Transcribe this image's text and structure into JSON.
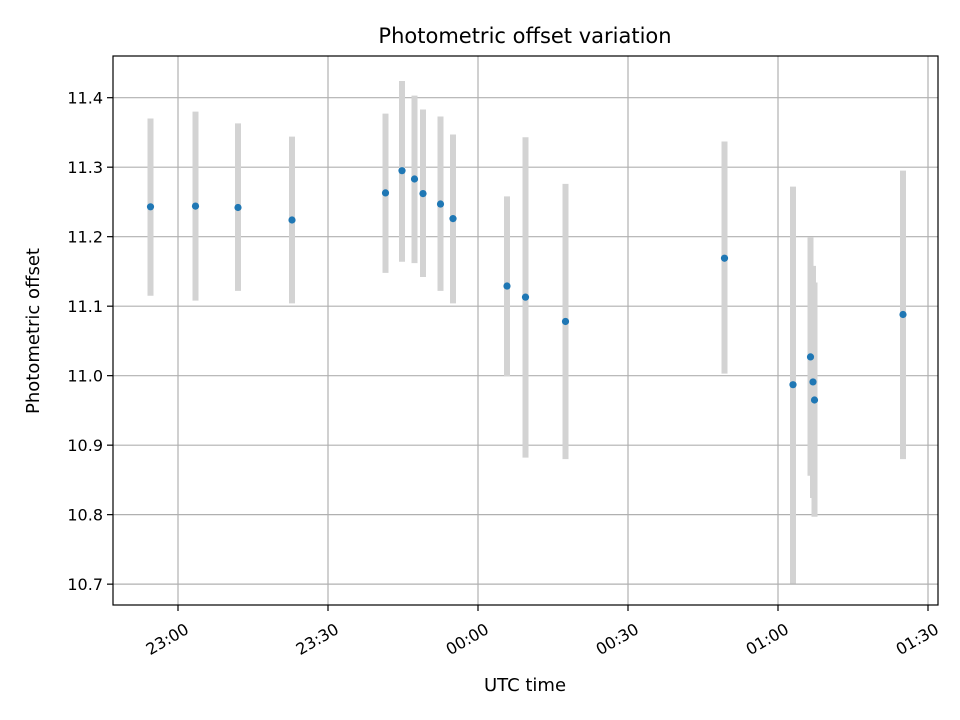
{
  "chart_data": {
    "type": "scatter",
    "title": "Photometric offset variation",
    "xlabel": "UTC time",
    "ylabel": "Photometric offset",
    "x_axis_kind": "time",
    "xlim": [
      "22:47",
      "01:32"
    ],
    "ylim": [
      10.67,
      11.46
    ],
    "x_ticks": [
      "23:00",
      "23:30",
      "00:00",
      "00:30",
      "01:00",
      "01:30"
    ],
    "y_ticks": [
      "10.7",
      "10.8",
      "10.9",
      "11.0",
      "11.1",
      "11.2",
      "11.3",
      "11.4"
    ],
    "grid": true,
    "marker_color": "#1f77b4",
    "errorbar_color": "#d3d3d3",
    "series": [
      {
        "points": [
          {
            "x": "22:54.5",
            "y": 11.243,
            "ylow": 11.115,
            "yhigh": 11.37
          },
          {
            "x": "23:03.5",
            "y": 11.244,
            "ylow": 11.108,
            "yhigh": 11.38
          },
          {
            "x": "23:12.0",
            "y": 11.242,
            "ylow": 11.122,
            "yhigh": 11.363
          },
          {
            "x": "23:22.8",
            "y": 11.224,
            "ylow": 11.104,
            "yhigh": 11.344
          },
          {
            "x": "23:41.5",
            "y": 11.263,
            "ylow": 11.148,
            "yhigh": 11.377
          },
          {
            "x": "23:44.8",
            "y": 11.295,
            "ylow": 11.164,
            "yhigh": 11.424
          },
          {
            "x": "23:47.3",
            "y": 11.283,
            "ylow": 11.162,
            "yhigh": 11.403
          },
          {
            "x": "23:49.0",
            "y": 11.262,
            "ylow": 11.142,
            "yhigh": 11.383
          },
          {
            "x": "23:52.5",
            "y": 11.247,
            "ylow": 11.122,
            "yhigh": 11.373
          },
          {
            "x": "23:55.0",
            "y": 11.226,
            "ylow": 11.104,
            "yhigh": 11.347
          },
          {
            "x": "00:05.8",
            "y": 11.129,
            "ylow": 10.999,
            "yhigh": 11.258
          },
          {
            "x": "00:09.5",
            "y": 11.113,
            "ylow": 10.882,
            "yhigh": 11.343
          },
          {
            "x": "00:17.5",
            "y": 11.078,
            "ylow": 10.88,
            "yhigh": 11.276
          },
          {
            "x": "00:49.3",
            "y": 11.169,
            "ylow": 11.003,
            "yhigh": 11.337
          },
          {
            "x": "01:03.0",
            "y": 10.987,
            "ylow": 10.701,
            "yhigh": 11.272
          },
          {
            "x": "01:06.5",
            "y": 11.027,
            "ylow": 10.856,
            "yhigh": 11.199
          },
          {
            "x": "01:07.0",
            "y": 10.991,
            "ylow": 10.824,
            "yhigh": 11.158
          },
          {
            "x": "01:07.3",
            "y": 10.965,
            "ylow": 10.797,
            "yhigh": 11.134
          },
          {
            "x": "01:25.0",
            "y": 11.088,
            "ylow": 10.88,
            "yhigh": 11.295
          }
        ]
      }
    ]
  }
}
